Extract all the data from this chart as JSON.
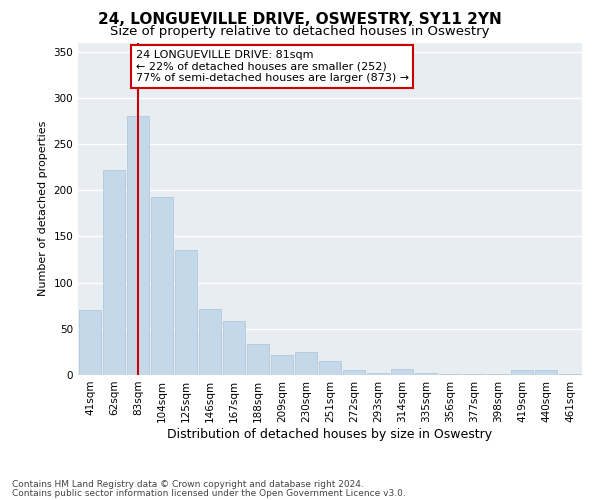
{
  "title": "24, LONGUEVILLE DRIVE, OSWESTRY, SY11 2YN",
  "subtitle": "Size of property relative to detached houses in Oswestry",
  "xlabel": "Distribution of detached houses by size in Oswestry",
  "ylabel": "Number of detached properties",
  "categories": [
    "41sqm",
    "62sqm",
    "83sqm",
    "104sqm",
    "125sqm",
    "146sqm",
    "167sqm",
    "188sqm",
    "209sqm",
    "230sqm",
    "251sqm",
    "272sqm",
    "293sqm",
    "314sqm",
    "335sqm",
    "356sqm",
    "377sqm",
    "398sqm",
    "419sqm",
    "440sqm",
    "461sqm"
  ],
  "values": [
    70,
    222,
    280,
    193,
    135,
    72,
    58,
    34,
    22,
    25,
    15,
    5,
    2,
    6,
    2,
    1,
    1,
    1,
    5,
    5,
    1
  ],
  "bar_color": "#c5d8ea",
  "bar_edge_color": "#aac4d8",
  "vline_x": 2,
  "vline_color": "#cc0000",
  "annotation_text": "24 LONGUEVILLE DRIVE: 81sqm\n← 22% of detached houses are smaller (252)\n77% of semi-detached houses are larger (873) →",
  "annotation_box_color": "#ffffff",
  "annotation_box_edge_color": "#cc0000",
  "ylim": [
    0,
    360
  ],
  "yticks": [
    0,
    50,
    100,
    150,
    200,
    250,
    300,
    350
  ],
  "footer_line1": "Contains HM Land Registry data © Crown copyright and database right 2024.",
  "footer_line2": "Contains public sector information licensed under the Open Government Licence v3.0.",
  "fig_background_color": "#ffffff",
  "plot_background_color": "#e8edf2",
  "grid_color": "#ffffff",
  "title_fontsize": 11,
  "subtitle_fontsize": 9.5,
  "xlabel_fontsize": 9,
  "ylabel_fontsize": 8,
  "tick_fontsize": 7.5,
  "annotation_fontsize": 8,
  "footer_fontsize": 6.5
}
